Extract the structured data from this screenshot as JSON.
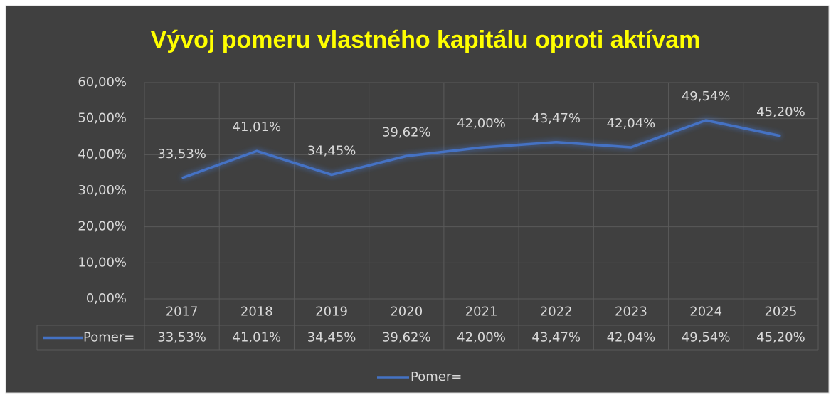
{
  "chart_data": {
    "type": "line",
    "title": "Vývoj pomeru vlastného kapitálu oproti aktívam",
    "categories": [
      "2017",
      "2018",
      "2019",
      "2020",
      "2021",
      "2022",
      "2023",
      "2024",
      "2025"
    ],
    "series": [
      {
        "name": "Pomer=",
        "color": "#4472c4",
        "values": [
          33.53,
          41.01,
          34.45,
          39.62,
          42.0,
          43.47,
          42.04,
          49.54,
          45.2
        ],
        "value_labels": [
          "33,53%",
          "41,01%",
          "34,45%",
          "39,62%",
          "42,00%",
          "43,47%",
          "42,04%",
          "49,54%",
          "45,20%"
        ]
      }
    ],
    "ylim": [
      0,
      60
    ],
    "yticks": [
      {
        "value": 0,
        "label": "0,00%"
      },
      {
        "value": 10,
        "label": "10,00%"
      },
      {
        "value": 20,
        "label": "20,00%"
      },
      {
        "value": 30,
        "label": "30,00%"
      },
      {
        "value": 40,
        "label": "40,00%"
      },
      {
        "value": 50,
        "label": "50,00%"
      },
      {
        "value": 60,
        "label": "60,00%"
      }
    ],
    "grid": true,
    "data_table": true,
    "legend": "bottom"
  }
}
